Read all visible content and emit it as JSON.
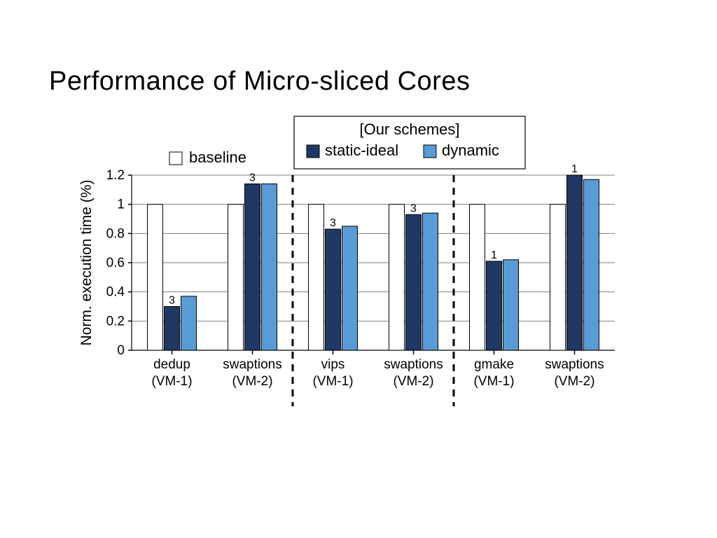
{
  "title": "Performance of Micro-sliced Cores",
  "chart": {
    "type": "grouped-bar",
    "ylabel": "Norm. execution time (%)",
    "ylim": [
      0,
      1.2
    ],
    "ytick_step": 0.2,
    "yticks": [
      "0",
      "0.2",
      "0.4",
      "0.6",
      "0.8",
      "1",
      "1.2"
    ],
    "background_color": "#ffffff",
    "grid_color": "#7f7f7f",
    "axis_color": "#000000",
    "title_fontsize": 38,
    "axis_label_fontsize": 21,
    "tick_fontsize": 19,
    "category_fontsize": 19,
    "barlabel_fontsize": 16,
    "bar_border_color": "#000000",
    "bar_border_width": 1,
    "legend": {
      "group_title": "[Our schemes]",
      "items": [
        {
          "name": "baseline",
          "fill": "#ffffff"
        },
        {
          "name": "static-ideal",
          "fill": "#1f3864"
        },
        {
          "name": "dynamic",
          "fill": "#5b9bd5"
        }
      ],
      "fontsize": 22
    },
    "categories": [
      {
        "line1": "dedup",
        "line2": "(VM-1)"
      },
      {
        "line1": "swaptions",
        "line2": "(VM-2)"
      },
      {
        "line1": "vips",
        "line2": "(VM-1)"
      },
      {
        "line1": "swaptions",
        "line2": "(VM-2)"
      },
      {
        "line1": "gmake",
        "line2": "(VM-1)"
      },
      {
        "line1": "swaptions",
        "line2": "(VM-2)"
      }
    ],
    "series": {
      "baseline": [
        1.0,
        1.0,
        1.0,
        1.0,
        1.0,
        1.0
      ],
      "static_ideal": [
        0.3,
        1.14,
        0.83,
        0.93,
        0.61,
        1.2
      ],
      "dynamic": [
        0.37,
        1.14,
        0.85,
        0.94,
        0.62,
        1.17
      ]
    },
    "bar_top_labels": [
      "3",
      "3",
      "3",
      "3",
      "1",
      "1"
    ],
    "group_dividers_after": [
      2,
      4
    ],
    "divider_color": "#000000",
    "divider_dash": "10,8",
    "divider_width": 3
  }
}
